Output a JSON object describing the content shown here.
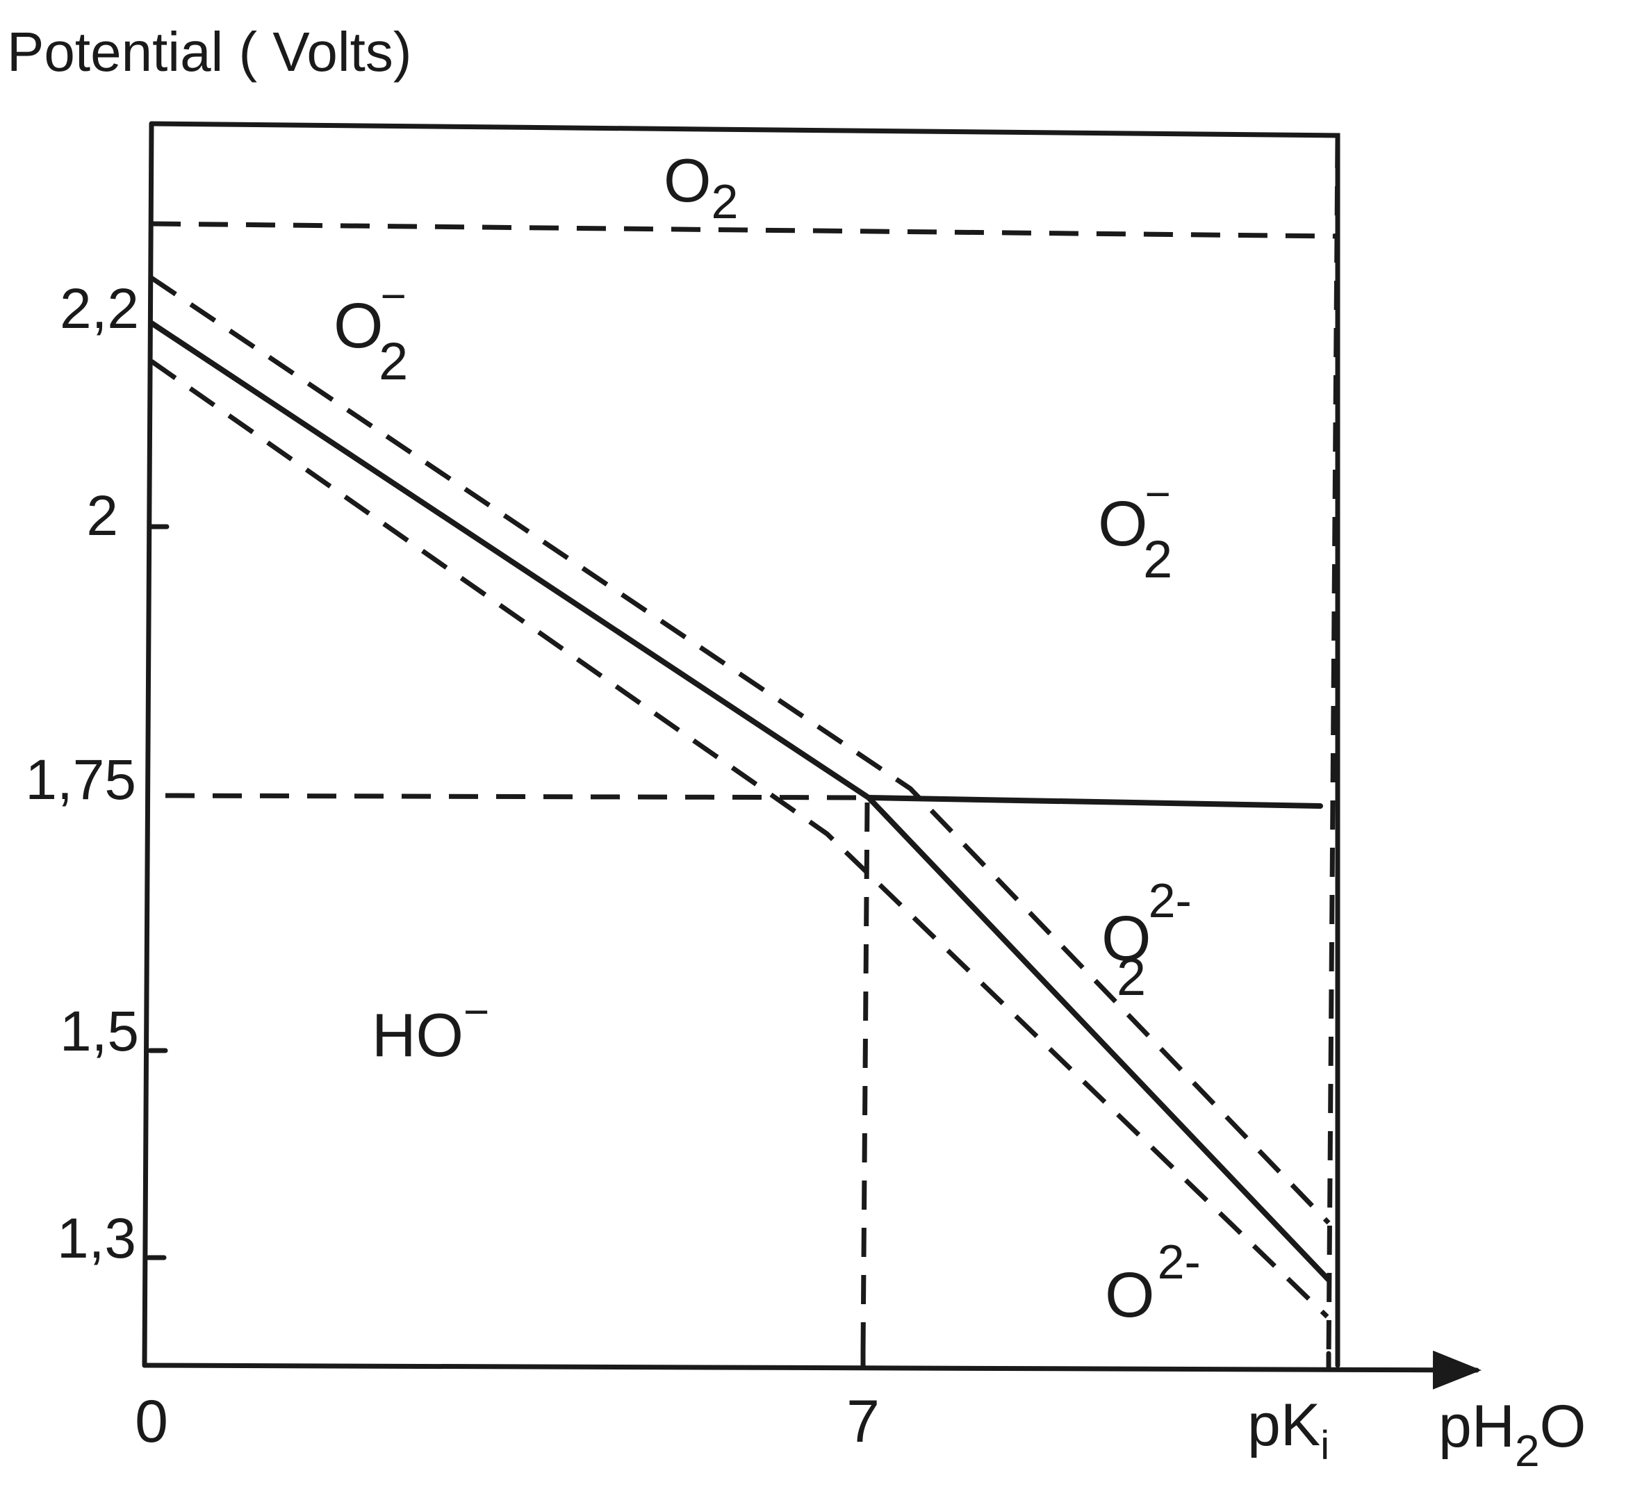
{
  "colors": {
    "ink": "#1a1a1a",
    "background": "#ffffff"
  },
  "y_axis_title": "Potential ( Volts)",
  "y_ticks": [
    "2,2",
    "2",
    "1,75",
    "1,5",
    "1,3"
  ],
  "x_ticks": {
    "zero": "0",
    "seven": "7",
    "pk": {
      "main": "pK",
      "sub": "i"
    }
  },
  "x_axis_title": {
    "pre": "pH",
    "sub": "2",
    "post": "O"
  },
  "regions": {
    "o2_top": {
      "base": "O",
      "sub": "2"
    },
    "superoxide_left": {
      "base": "O",
      "sub": "2",
      "sup": "−"
    },
    "superoxide_right": {
      "base": "O",
      "sub": "2",
      "sup": "−"
    },
    "peroxide": {
      "base": "O",
      "sub": "2",
      "sup": "2-"
    },
    "oxide": {
      "base": "O",
      "sup": "2-"
    },
    "hydroxide": {
      "base": "HO",
      "sup": "−"
    }
  }
}
